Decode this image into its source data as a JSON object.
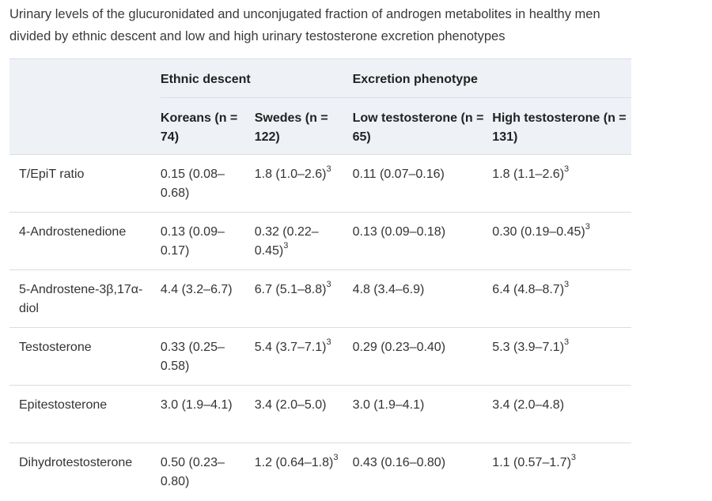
{
  "caption": "Urinary levels of the glucuronidated and unconjugated fraction of androgen metabolites in healthy men divided by ethnic descent and low and high urinary testosterone excretion phenotypes",
  "header": {
    "groups": [
      "Ethnic descent",
      "Excretion phenotype"
    ],
    "columns": [
      "Koreans (n = 74)",
      "Swedes (n = 122)",
      "Low testosterone (n = 65)",
      "High testosterone (n = 131)"
    ]
  },
  "rows": [
    {
      "label": "T/EpiT ratio",
      "cells": [
        {
          "v": "0.15 (0.08–0.68)",
          "sup": ""
        },
        {
          "v": "1.8 (1.0–2.6)",
          "sup": "3"
        },
        {
          "v": "0.11 (0.07–0.16)",
          "sup": ""
        },
        {
          "v": "1.8 (1.1–2.6)",
          "sup": "3"
        }
      ]
    },
    {
      "label": "4-Androstenedione",
      "cells": [
        {
          "v": "0.13 (0.09–0.17)",
          "sup": ""
        },
        {
          "v": "0.32 (0.22–0.45)",
          "sup": "3"
        },
        {
          "v": "0.13 (0.09–0.18)",
          "sup": ""
        },
        {
          "v": "0.30 (0.19–0.45)",
          "sup": "3"
        }
      ]
    },
    {
      "label": "5-Androstene-3β,17α-diol",
      "cells": [
        {
          "v": "4.4 (3.2–6.7)",
          "sup": ""
        },
        {
          "v": "6.7 (5.1–8.8)",
          "sup": "3"
        },
        {
          "v": "4.8 (3.4–6.9)",
          "sup": ""
        },
        {
          "v": "6.4 (4.8–8.7)",
          "sup": "3"
        }
      ]
    },
    {
      "label": "Testosterone",
      "cells": [
        {
          "v": "0.33 (0.25–0.58)",
          "sup": ""
        },
        {
          "v": "5.4 (3.7–7.1)",
          "sup": "3"
        },
        {
          "v": "0.29 (0.23–0.40)",
          "sup": ""
        },
        {
          "v": "5.3 (3.9–7.1)",
          "sup": "3"
        }
      ]
    },
    {
      "label": "Epitestosterone",
      "cells": [
        {
          "v": "3.0 (1.9–4.1)",
          "sup": ""
        },
        {
          "v": "3.4 (2.0–5.0)",
          "sup": ""
        },
        {
          "v": "3.0 (1.9–4.1)",
          "sup": ""
        },
        {
          "v": "3.4 (2.0–4.8)",
          "sup": ""
        }
      ]
    },
    {
      "label": "Dihydrotestosterone",
      "cells": [
        {
          "v": "0.50 (0.23–0.80)",
          "sup": ""
        },
        {
          "v": "1.2 (0.64–1.8)",
          "sup": "3"
        },
        {
          "v": "0.43 (0.16–0.80)",
          "sup": ""
        },
        {
          "v": "1.1 (0.57–1.7)",
          "sup": "3"
        }
      ]
    }
  ]
}
